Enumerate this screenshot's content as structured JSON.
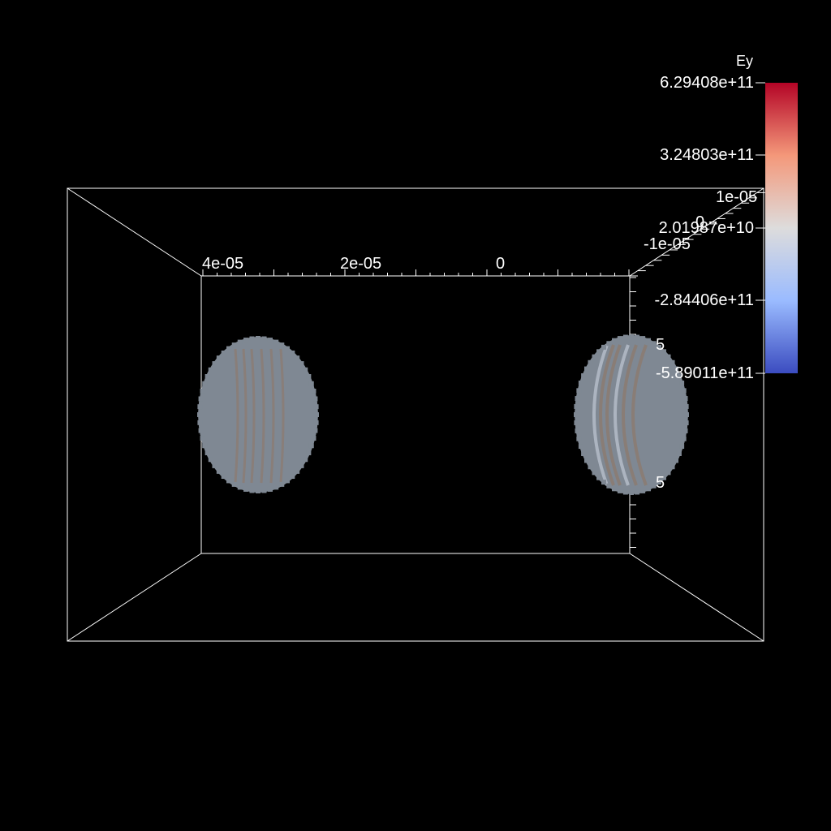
{
  "colorbar": {
    "title": "Ey",
    "tick_labels": [
      "6.29408e+11",
      "3.24803e+11",
      "2.01987e+10",
      "-2.84406e+11",
      "-5.89011e+11"
    ],
    "gradient_colors": [
      "#b40426",
      "#f4987a",
      "#dddcdc",
      "#9abbff",
      "#3b4cc0"
    ]
  },
  "axes": {
    "x_tick_labels": [
      "4e-05",
      "2e-05",
      "0"
    ],
    "y_tick_labels": [
      "1e-05",
      "0",
      "-1e-05"
    ],
    "z_partial_labels": [
      "5",
      "5"
    ]
  },
  "colors": {
    "background": "#000000",
    "box_lines": "#ffffff",
    "blob_fill": "#7f8893",
    "blob_stripe": "#8c7b70",
    "blob_highlight": "#b8c0cc"
  },
  "objects": [
    {
      "name": "left-blob",
      "description": "gray sphere with faint orange striping"
    },
    {
      "name": "right-blob",
      "description": "gray sphere with faint orange/white striping"
    }
  ]
}
